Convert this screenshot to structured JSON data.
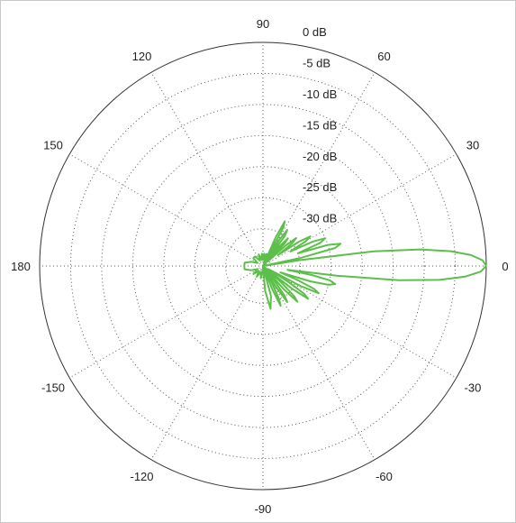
{
  "chart_data": {
    "type": "polar",
    "title": "",
    "angle_unit": "degrees",
    "angle_ticks": [
      0,
      30,
      60,
      90,
      120,
      150,
      180,
      -150,
      -120,
      -90,
      -60,
      -30
    ],
    "angle_tick_labels": [
      "0",
      "30",
      "60",
      "90",
      "120",
      "150",
      "180",
      "-150",
      "-120",
      "-90",
      "-60",
      "-30"
    ],
    "radial_ticks_db": [
      0,
      -5,
      -10,
      -15,
      -20,
      -25,
      -30
    ],
    "radial_tick_labels": [
      "0 dB",
      "-5 dB",
      "-10 dB",
      "-15 dB",
      "-20 dB",
      "-25 dB",
      "-30 dB"
    ],
    "rlim_db": [
      -36,
      0
    ],
    "grid": true,
    "series": [
      {
        "color": "#5cbf4a",
        "theta_deg": [
          0,
          1.5,
          3,
          4.5,
          6,
          7.5,
          9,
          10.5,
          12,
          14,
          16,
          18,
          20,
          22,
          24,
          26,
          28,
          30,
          32,
          34,
          36,
          38,
          40,
          42,
          44,
          46,
          48,
          50,
          52,
          54,
          56,
          58,
          60,
          62,
          64,
          66,
          68,
          70,
          75,
          80,
          85,
          90,
          95,
          100,
          110,
          120,
          130,
          140,
          150,
          160,
          170,
          180,
          -170,
          -160,
          -150,
          -140,
          -130,
          -120,
          -110,
          -100,
          -95,
          -90,
          -85,
          -80,
          -75,
          -70,
          -68,
          -66,
          -64,
          -62,
          -60,
          -58,
          -56,
          -54,
          -52,
          -50,
          -48,
          -46,
          -44,
          -42,
          -40,
          -38,
          -36,
          -34,
          -32,
          -30,
          -28,
          -26,
          -24,
          -22,
          -20,
          -18,
          -16,
          -14,
          -12,
          -10.5,
          -9,
          -7.5,
          -6,
          -4.5,
          -3,
          -1.5,
          0
        ],
        "r_db": [
          0,
          -0.6,
          -2.4,
          -5.6,
          -10.5,
          -18,
          -30,
          -36,
          -30,
          -24,
          -23,
          -25,
          -30,
          -26,
          -25,
          -27,
          -31,
          -28,
          -27,
          -29,
          -33,
          -30,
          -29,
          -31,
          -35,
          -31,
          -30,
          -32,
          -36,
          -30,
          -29,
          -31,
          -36,
          -29,
          -28,
          -31,
          -36,
          -34,
          -34,
          -35,
          -34,
          -35,
          -34,
          -35,
          -34,
          -35,
          -34,
          -34,
          -35,
          -34,
          -33,
          -33,
          -33,
          -34,
          -35,
          -34,
          -35,
          -34,
          -35,
          -34,
          -35,
          -36,
          -32,
          -29,
          -31,
          -36,
          -32,
          -29,
          -30,
          -33,
          -36,
          -32,
          -29,
          -30,
          -33,
          -36,
          -31,
          -28,
          -29,
          -32,
          -36,
          -30,
          -27,
          -28,
          -31,
          -35,
          -29,
          -26,
          -27,
          -30,
          -33,
          -28,
          -25,
          -24,
          -25,
          -28,
          -32,
          -24,
          -14,
          -7.5,
          -3.4,
          -0.9,
          0
        ]
      }
    ]
  }
}
